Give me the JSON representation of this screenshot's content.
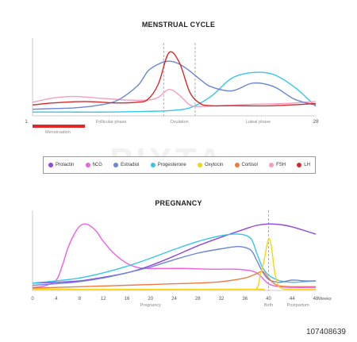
{
  "chart_data": [
    {
      "type": "line",
      "title": "MENSTRUAL CYCLE",
      "xlim": [
        1,
        28
      ],
      "x_ticks": [
        "1",
        "28"
      ],
      "phase_labels": [
        "Follicular phase",
        "Ovulation",
        "Luteal phase"
      ],
      "menstruation_label": "Menstruation",
      "menstruation_range": [
        1,
        6
      ],
      "ovulation_markers": [
        13.5,
        16.5
      ],
      "ylim": [
        0,
        10
      ],
      "series": [
        {
          "name": "Estradiol",
          "color": "#6b86d6",
          "x": [
            1,
            3,
            5,
            7,
            9,
            11,
            12,
            13,
            14,
            15,
            16,
            17,
            18,
            20,
            22,
            24,
            26,
            28
          ],
          "y": [
            0.6,
            0.7,
            0.8,
            1.1,
            1.8,
            3.9,
            6.0,
            7.0,
            7.4,
            7.0,
            6.0,
            4.8,
            3.8,
            3.2,
            4.3,
            3.8,
            2.0,
            1.2
          ]
        },
        {
          "name": "Progesterone",
          "color": "#36c5ee",
          "x": [
            1,
            4,
            8,
            12,
            14,
            16,
            18,
            20,
            22,
            24,
            26,
            28
          ],
          "y": [
            0.2,
            0.2,
            0.2,
            0.3,
            0.4,
            0.8,
            2.4,
            5.0,
            5.8,
            5.5,
            3.7,
            1.0
          ]
        },
        {
          "name": "LH",
          "color": "#d42a2a",
          "x": [
            1,
            3,
            6,
            9,
            11,
            12,
            13,
            14,
            15,
            16,
            17,
            18,
            20,
            24,
            28
          ],
          "y": [
            1.2,
            1.5,
            1.7,
            1.5,
            1.6,
            2.0,
            4.2,
            8.6,
            7.2,
            3.0,
            1.4,
            1.1,
            1.1,
            1.1,
            1.4
          ]
        },
        {
          "name": "FSH",
          "color": "#f69cbf",
          "x": [
            1,
            3,
            5,
            8,
            10,
            12,
            13,
            14,
            15,
            16,
            17,
            19,
            22,
            25,
            28
          ],
          "y": [
            1.6,
            2.2,
            2.4,
            2.1,
            1.9,
            1.9,
            2.3,
            3.4,
            2.6,
            1.2,
            1.0,
            1.1,
            1.3,
            1.4,
            1.7
          ]
        }
      ]
    },
    {
      "type": "line",
      "title": "PREGNANCY",
      "xlim": [
        0,
        48
      ],
      "x_ticks": [
        "0",
        "4",
        "8",
        "12",
        "16",
        "20",
        "24",
        "28",
        "32",
        "36",
        "40",
        "44",
        "48"
      ],
      "x_tick_values": [
        0,
        4,
        8,
        12,
        16,
        20,
        24,
        28,
        32,
        36,
        40,
        44,
        48
      ],
      "x_tick_suffix": "Weeks",
      "region_labels": [
        "Pregnancy",
        "Birth",
        "Postpartum"
      ],
      "birth_marker": 40,
      "ylim": [
        0,
        10
      ],
      "series": [
        {
          "name": "hCG",
          "color": "#ee5fe6",
          "x": [
            0,
            2,
            4,
            5,
            6,
            7,
            8,
            9,
            10,
            11,
            12,
            14,
            16,
            18,
            20,
            22,
            26,
            30,
            34,
            36,
            38,
            40,
            42,
            44,
            48
          ],
          "y": [
            0.3,
            0.5,
            1.3,
            3.2,
            5.7,
            7.5,
            8.7,
            9.0,
            8.6,
            7.8,
            6.6,
            4.8,
            3.6,
            3.0,
            2.9,
            2.9,
            2.9,
            2.8,
            2.8,
            2.7,
            2.3,
            0.8,
            0.4,
            0.3,
            0.3
          ]
        },
        {
          "name": "Prolactin",
          "color": "#8e46e0",
          "x": [
            0,
            4,
            8,
            12,
            16,
            20,
            24,
            28,
            32,
            36,
            38,
            40,
            42,
            44,
            48
          ],
          "y": [
            0.9,
            1.0,
            1.2,
            1.7,
            2.3,
            3.3,
            4.6,
            6.0,
            7.2,
            8.3,
            8.8,
            9.0,
            8.9,
            8.6,
            7.6
          ]
        },
        {
          "name": "Progesterone",
          "color": "#36c5ee",
          "x": [
            0,
            4,
            8,
            12,
            16,
            20,
            24,
            28,
            32,
            35,
            37,
            38,
            39,
            40,
            41,
            42,
            44,
            48
          ],
          "y": [
            0.9,
            1.2,
            1.6,
            2.3,
            3.2,
            4.3,
            5.5,
            6.6,
            7.4,
            7.6,
            7.0,
            5.0,
            3.0,
            2.0,
            1.5,
            1.2,
            1.0,
            1.2
          ]
        },
        {
          "name": "Estradiol",
          "color": "#6b86d6",
          "x": [
            0,
            4,
            8,
            12,
            16,
            20,
            24,
            28,
            32,
            35,
            37,
            38,
            39,
            40,
            41,
            42,
            44,
            46,
            48
          ],
          "y": [
            0.6,
            0.8,
            1.1,
            1.6,
            2.3,
            3.1,
            4.1,
            5.0,
            5.6,
            5.9,
            5.4,
            4.0,
            2.4,
            1.4,
            1.1,
            1.0,
            1.3,
            1.2,
            1.2
          ]
        },
        {
          "name": "Cortisol",
          "color": "#f07a3d",
          "x": [
            0,
            4,
            8,
            12,
            16,
            20,
            24,
            28,
            32,
            36,
            38,
            39,
            40,
            41,
            42,
            44,
            48
          ],
          "y": [
            0.2,
            0.3,
            0.4,
            0.5,
            0.6,
            0.7,
            0.8,
            0.9,
            1.1,
            1.6,
            2.2,
            2.5,
            1.6,
            0.8,
            0.5,
            0.4,
            0.4
          ]
        },
        {
          "name": "Oxytocin",
          "color": "#f4d514",
          "x": [
            0,
            36,
            38,
            38.6,
            39.2,
            39.7,
            40.1,
            40.5,
            40.9,
            41.3,
            41.7,
            42.5,
            44,
            48
          ],
          "y": [
            0.05,
            0.05,
            0.2,
            2.0,
            3.8,
            6.0,
            7.0,
            5.8,
            3.2,
            1.4,
            0.5,
            0.1,
            0.05,
            0.05
          ]
        }
      ]
    }
  ],
  "legend": {
    "items": [
      {
        "label": "Prolactin",
        "color": "#8e46e0"
      },
      {
        "label": "hCG",
        "color": "#ee5fe6"
      },
      {
        "label": "Estradiol",
        "color": "#6b86d6"
      },
      {
        "label": "Progesterone",
        "color": "#36c5ee"
      },
      {
        "label": "Oxytocin",
        "color": "#f4d514"
      },
      {
        "label": "Cortisol",
        "color": "#f07a3d"
      },
      {
        "label": "FSH",
        "color": "#f69cbf"
      },
      {
        "label": "LH",
        "color": "#d42a2a"
      }
    ]
  },
  "watermark": "PIXTA",
  "stock_id": "107408639"
}
